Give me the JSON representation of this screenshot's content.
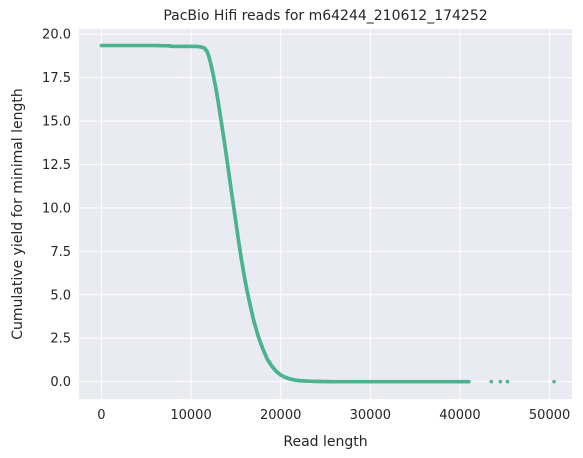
{
  "chart_data": {
    "type": "scatter",
    "title": "PacBio Hifi reads for m64244_210612_174252",
    "xlabel": "Read length",
    "ylabel": "Cumulative yield for minimal length",
    "xlim": [
      -2500,
      52500
    ],
    "ylim": [
      -1.0,
      20.3
    ],
    "xticks": [
      0,
      10000,
      20000,
      30000,
      40000,
      50000
    ],
    "xtick_labels": [
      "0",
      "10000",
      "20000",
      "30000",
      "40000",
      "50000"
    ],
    "yticks": [
      0.0,
      2.5,
      5.0,
      7.5,
      10.0,
      12.5,
      15.0,
      17.5,
      20.0
    ],
    "ytick_labels": [
      "0.0",
      "2.5",
      "5.0",
      "7.5",
      "10.0",
      "12.5",
      "15.0",
      "17.5",
      "20.0"
    ],
    "grid": true,
    "style": "seaborn-darkgrid",
    "background_color": "#eaeaf2",
    "point_color": "#4bb48f",
    "series": [
      {
        "x": [
          0,
          2000,
          4000,
          6000,
          7500,
          8000,
          9000,
          10000,
          10500,
          11000,
          11500,
          11800,
          12000,
          12200,
          12500,
          12800,
          13000,
          13300,
          13600,
          14000,
          14300,
          14600,
          15000,
          15300,
          15600,
          16000,
          16300,
          16600,
          17000,
          17500,
          18000,
          18500,
          19000,
          19500,
          20000,
          20500,
          21000,
          21500,
          22000,
          22500,
          23000,
          23500,
          24000,
          24500,
          25000,
          25500,
          26000,
          27000,
          28000,
          29000,
          30000,
          31000,
          32000,
          33000,
          34000,
          35000,
          36000,
          37000,
          38000,
          39000,
          40000,
          41000,
          43500,
          44500,
          45300,
          50500
        ],
        "y": [
          19.35,
          19.35,
          19.35,
          19.35,
          19.33,
          19.3,
          19.3,
          19.3,
          19.3,
          19.28,
          19.2,
          19.0,
          18.7,
          18.3,
          17.6,
          16.8,
          16.2,
          15.2,
          14.2,
          12.8,
          11.7,
          10.6,
          9.2,
          8.1,
          7.1,
          5.9,
          5.1,
          4.4,
          3.5,
          2.6,
          1.9,
          1.3,
          0.9,
          0.6,
          0.38,
          0.25,
          0.16,
          0.1,
          0.06,
          0.04,
          0.03,
          0.02,
          0.01,
          0.01,
          0.005,
          0.0,
          0.0,
          0.0,
          0.0,
          0.0,
          0.0,
          0.0,
          0.0,
          0.0,
          0.0,
          0.0,
          0.0,
          0.0,
          0.0,
          0.0,
          0.0,
          0.0,
          0.0,
          0.0,
          0.0,
          0.0
        ]
      }
    ]
  }
}
